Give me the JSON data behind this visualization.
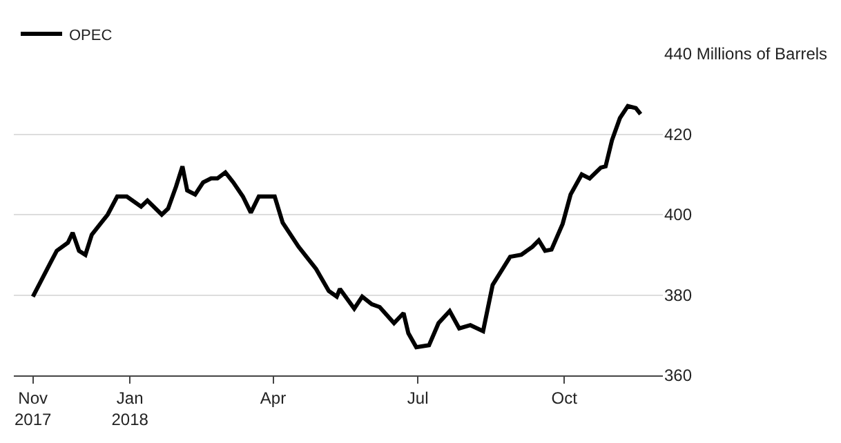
{
  "chart_data": {
    "type": "line",
    "x": [
      "2017-11-01",
      "2017-11-06",
      "2017-11-12",
      "2017-11-16",
      "2017-11-23",
      "2017-11-26",
      "2017-11-30",
      "2017-12-04",
      "2017-12-08",
      "2017-12-14",
      "2017-12-18",
      "2017-12-24",
      "2017-12-30",
      "2018-01-08",
      "2018-01-12",
      "2018-01-21",
      "2018-01-25",
      "2018-01-30",
      "2018-02-03",
      "2018-02-06",
      "2018-02-11",
      "2018-02-16",
      "2018-02-21",
      "2018-02-25",
      "2018-03-02",
      "2018-03-07",
      "2018-03-13",
      "2018-03-18",
      "2018-03-23",
      "2018-03-28",
      "2018-04-02",
      "2018-04-07",
      "2018-04-12",
      "2018-04-17",
      "2018-04-23",
      "2018-04-28",
      "2018-05-06",
      "2018-05-11",
      "2018-05-13",
      "2018-05-22",
      "2018-05-27",
      "2018-06-02",
      "2018-06-07",
      "2018-06-16",
      "2018-06-22",
      "2018-06-25",
      "2018-06-30",
      "2018-07-08",
      "2018-07-14",
      "2018-07-21",
      "2018-07-27",
      "2018-08-03",
      "2018-08-11",
      "2018-08-17",
      "2018-08-28",
      "2018-09-04",
      "2018-09-11",
      "2018-09-15",
      "2018-09-19",
      "2018-09-23",
      "2018-09-30",
      "2018-10-05",
      "2018-10-12",
      "2018-10-17",
      "2018-10-24",
      "2018-10-27",
      "2018-10-31",
      "2018-11-05",
      "2018-11-10",
      "2018-11-15",
      "2018-11-18"
    ],
    "series": [
      {
        "name": "OPEC",
        "color": "#000000",
        "values": [
          379.6,
          383.4,
          388,
          391,
          393,
          395.5,
          391,
          390,
          395,
          398,
          400,
          404.5,
          404.5,
          402,
          403.5,
          400,
          401.5,
          407,
          412,
          406,
          405,
          408,
          409,
          409,
          410.5,
          408,
          404.5,
          400.5,
          404.5,
          404.5,
          404.5,
          398,
          395,
          392,
          389,
          386.5,
          381,
          379.6,
          381.5,
          376.6,
          379.6,
          377.7,
          377,
          373,
          375.5,
          370.5,
          367,
          367.5,
          373,
          376,
          371.7,
          372.5,
          371,
          382.5,
          389.5,
          390,
          392,
          393.6,
          391,
          391.3,
          397.7,
          405,
          410,
          409,
          411.7,
          412,
          418.5,
          424,
          427,
          426.5,
          425
        ]
      }
    ],
    "xlim": [
      "2017-10-20",
      "2018-12-02"
    ],
    "xticks": [
      {
        "value": "2017-11-01",
        "label": "Nov\n2017"
      },
      {
        "value": "2018-01-01",
        "label": "Jan\n2018"
      },
      {
        "value": "2018-04-01",
        "label": "Apr"
      },
      {
        "value": "2018-07-01",
        "label": "Jul"
      },
      {
        "value": "2018-10-01",
        "label": "Oct"
      }
    ],
    "ylim": [
      360,
      440
    ],
    "yticks": [
      360,
      380,
      400,
      420,
      {
        "value": 440,
        "label": "440 Millions of Barrels"
      }
    ],
    "grid": "y",
    "legend": "top left",
    "marker": "none",
    "line_style": "solid"
  }
}
